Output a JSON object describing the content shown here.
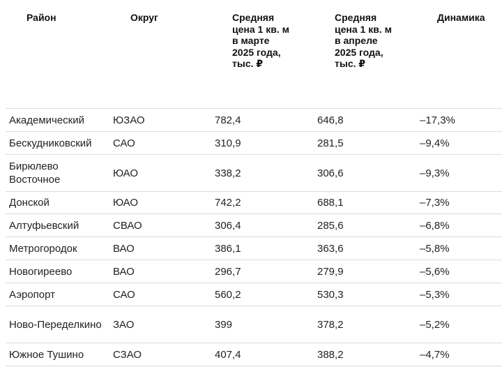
{
  "table": {
    "header": [
      "Район",
      "Округ",
      "Средняя цена 1 кв. м в марте 2025 года, тыс. ₽",
      "Средняя цена 1 кв. м в апреле 2025 года, тыс. ₽",
      "Динамика"
    ],
    "rows": [
      [
        "Академический",
        "ЮЗАО",
        "782,4",
        "646,8",
        "–17,3%"
      ],
      [
        "Бескудниковский",
        "САО",
        "310,9",
        "281,5",
        "–9,4%"
      ],
      [
        "Бирюлево Восточное",
        "ЮАО",
        "338,2",
        "306,6",
        "–9,3%"
      ],
      [
        "Донской",
        "ЮАО",
        "742,2",
        "688,1",
        "–7,3%"
      ],
      [
        "Алтуфьевский",
        "СВАО",
        "306,4",
        "285,6",
        "–6,8%"
      ],
      [
        "Метрогородок",
        "ВАО",
        "386,1",
        "363,6",
        "–5,8%"
      ],
      [
        "Новогиреево",
        "ВАО",
        "296,7",
        "279,9",
        "–5,6%"
      ],
      [
        "Аэропорт",
        "САО",
        "560,2",
        "530,3",
        "–5,3%"
      ],
      [
        "Ново-Переделкино",
        "ЗАО",
        "399",
        "378,2",
        "–5,2%"
      ],
      [
        "Южное Тушино",
        "СЗАО",
        "407,4",
        "388,2",
        "–4,7%"
      ]
    ]
  }
}
